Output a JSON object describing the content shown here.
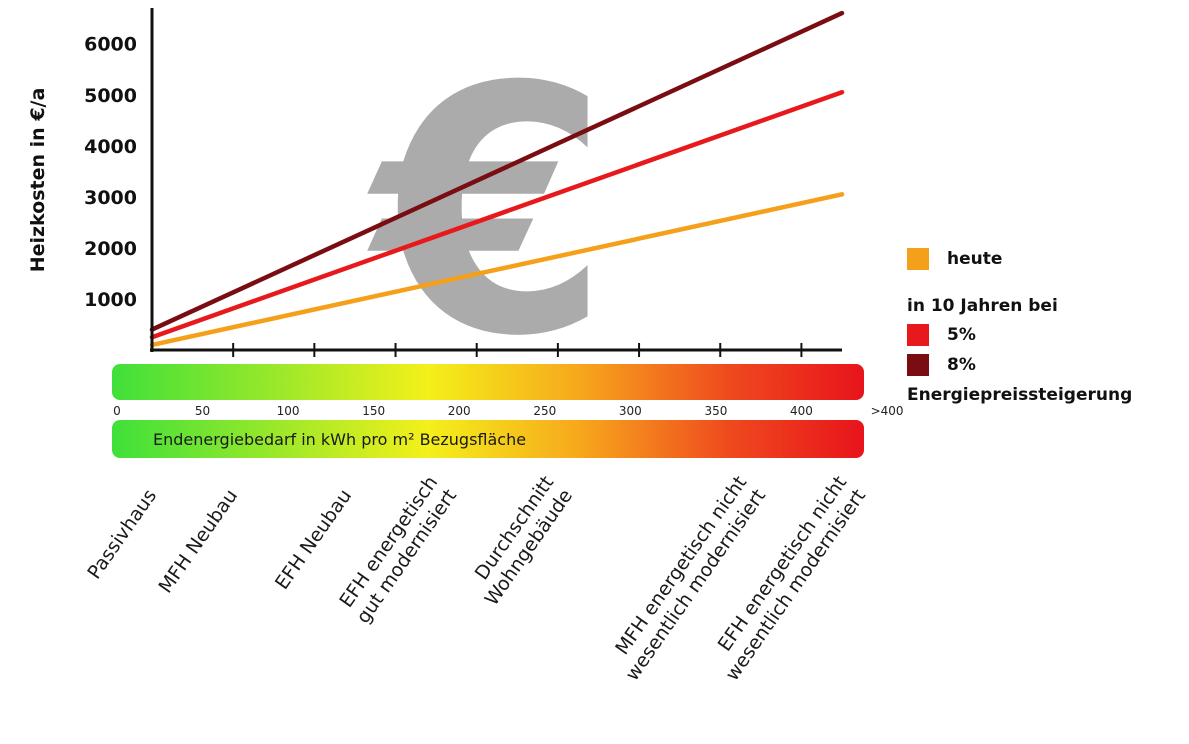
{
  "chart_data": {
    "type": "line",
    "ylabel": "Heizkosten in €/a",
    "yticks": [
      1000,
      2000,
      3000,
      4000,
      5000,
      6000
    ],
    "ylim": [
      0,
      6700
    ],
    "xlim": [
      0,
      425
    ],
    "x_scale_labels": [
      "0",
      "50",
      "100",
      "150",
      "200",
      "250",
      "300",
      "350",
      "400",
      ">400"
    ],
    "x_band_label": "Endenergiebedarf in kWh pro m² Bezugsfläche",
    "background_symbol": "€",
    "categories": [
      "Passivhaus",
      "MFH Neubau",
      "EFH Neubau",
      "EFH energetisch\ngut modernisiert",
      "Durchschnitt\nWohngebäude",
      "MFH energetisch nicht\nwesentlich modernisiert",
      "EFH energetisch nicht\nwesentlich modernisiert"
    ],
    "series": [
      {
        "name": "heute",
        "color": "#f5a01a",
        "x": [
          0,
          425
        ],
        "y": [
          100,
          3050
        ]
      },
      {
        "name": "5%",
        "color": "#e8191c",
        "x": [
          0,
          425
        ],
        "y": [
          250,
          5050
        ]
      },
      {
        "name": "8%",
        "color": "#7a0d12",
        "x": [
          0,
          425
        ],
        "y": [
          400,
          6600
        ]
      }
    ],
    "legend": {
      "position": "right",
      "heading": "in 10 Jahren bei",
      "footer": "Energiepreissteigerung"
    }
  }
}
